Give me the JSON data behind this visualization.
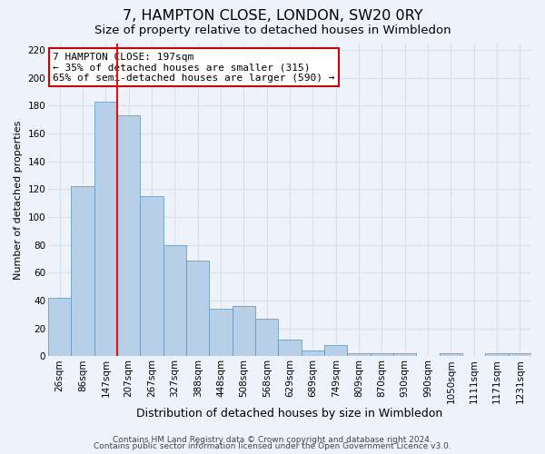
{
  "title": "7, HAMPTON CLOSE, LONDON, SW20 0RY",
  "subtitle": "Size of property relative to detached houses in Wimbledon",
  "xlabel": "Distribution of detached houses by size in Wimbledon",
  "ylabel": "Number of detached properties",
  "bar_labels": [
    "26sqm",
    "86sqm",
    "147sqm",
    "207sqm",
    "267sqm",
    "327sqm",
    "388sqm",
    "448sqm",
    "508sqm",
    "568sqm",
    "629sqm",
    "689sqm",
    "749sqm",
    "809sqm",
    "870sqm",
    "930sqm",
    "990sqm",
    "1050sqm",
    "1111sqm",
    "1171sqm",
    "1231sqm"
  ],
  "bar_heights": [
    42,
    122,
    183,
    173,
    115,
    80,
    69,
    34,
    36,
    27,
    12,
    4,
    8,
    2,
    2,
    2,
    0,
    2,
    0,
    2,
    2
  ],
  "bar_color": "#b8cfe8",
  "bar_edge_color": "#6a9ec0",
  "background_color": "#eef2fa",
  "grid_color": "#d8e0ef",
  "vline_x": 3.0,
  "vline_color": "#dd1111",
  "annotation_title": "7 HAMPTON CLOSE: 197sqm",
  "annotation_line1": "← 35% of detached houses are smaller (315)",
  "annotation_line2": "65% of semi-detached houses are larger (590) →",
  "annotation_box_color": "#ffffff",
  "annotation_box_edge": "#cc0000",
  "ylim": [
    0,
    225
  ],
  "yticks": [
    0,
    20,
    40,
    60,
    80,
    100,
    120,
    140,
    160,
    180,
    200,
    220
  ],
  "footer1": "Contains HM Land Registry data © Crown copyright and database right 2024.",
  "footer2": "Contains public sector information licensed under the Open Government Licence v3.0.",
  "title_fontsize": 11.5,
  "subtitle_fontsize": 9.5,
  "xlabel_fontsize": 9,
  "ylabel_fontsize": 8,
  "tick_fontsize": 7.5,
  "footer_fontsize": 6.5,
  "ann_fontsize": 8
}
